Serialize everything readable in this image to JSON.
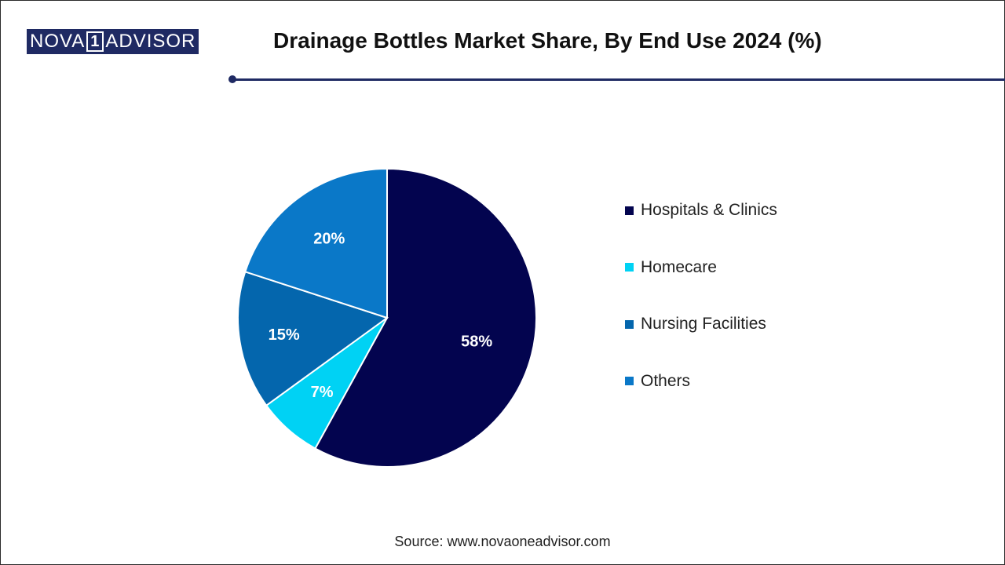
{
  "logo": {
    "left": "NOVA",
    "middle": "1",
    "right": "ADVISOR"
  },
  "source": "Source: www.novaoneadvisor.com",
  "chart_data": {
    "type": "pie",
    "title": "Drainage Bottles Market Share, By End Use 2024 (%)",
    "slices": [
      {
        "label": "Hospitals & Clinics",
        "value": 58,
        "display": "58%",
        "color": "#03044f"
      },
      {
        "label": "Homecare",
        "value": 7,
        "display": "7%",
        "color": "#00d2f4"
      },
      {
        "label": "Nursing Facilities",
        "value": 15,
        "display": "15%",
        "color": "#0466ad"
      },
      {
        "label": "Others",
        "value": 20,
        "display": "20%",
        "color": "#0a78c8"
      }
    ],
    "legend_position": "right"
  }
}
